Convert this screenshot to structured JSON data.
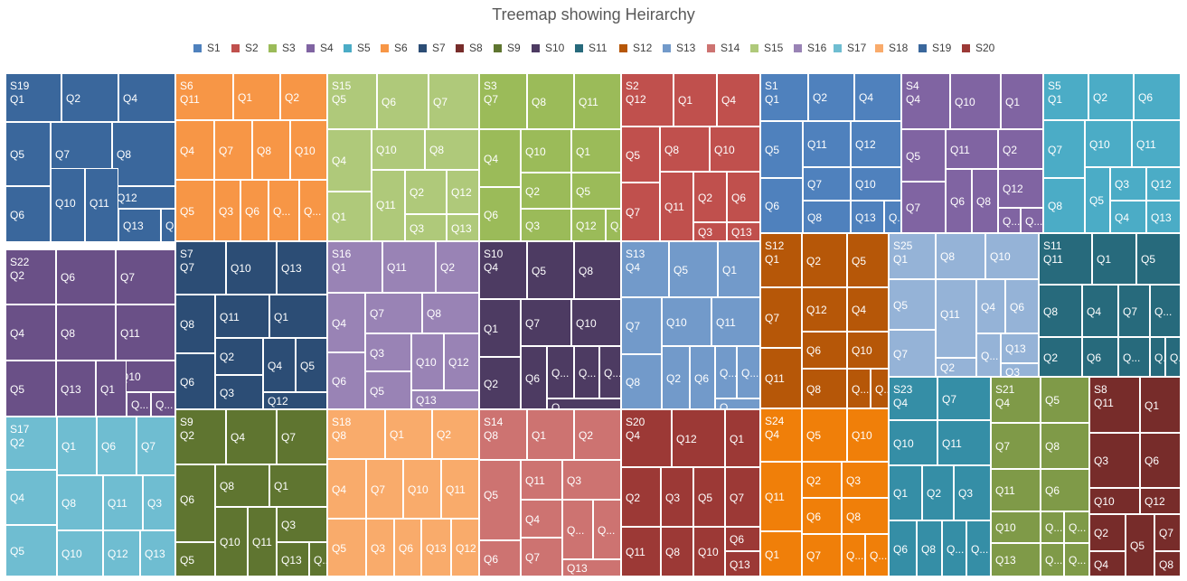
{
  "chart_data": {
    "type": "treemap",
    "title": "Treemap showing Heirarchy",
    "legend_position": "top",
    "legend": [
      "S1",
      "S2",
      "S3",
      "S4",
      "S5",
      "S6",
      "S7",
      "S8",
      "S9",
      "S10",
      "S11",
      "S12",
      "S13",
      "S14",
      "S15",
      "S16",
      "S17",
      "S18",
      "S19",
      "S20"
    ],
    "colors": {
      "S1": "#4f81bd",
      "S2": "#c0504d",
      "S3": "#9bbb59",
      "S4": "#8064a2",
      "S5": "#4bacc6",
      "S6": "#f79646",
      "S7": "#2c4d75",
      "S8": "#772c2a",
      "S9": "#5f7530",
      "S10": "#4d3b62",
      "S11": "#276a7c",
      "S12": "#b65708",
      "S13": "#729aca",
      "S14": "#cd7371",
      "S15": "#afc97a",
      "S16": "#9983b5",
      "S17": "#6fbdd1",
      "S18": "#f9ab6b",
      "S19": "#3a679c",
      "S20": "#9c3936",
      "S21": "#7f9a48",
      "S22": "#6a5087",
      "S23": "#358ea6",
      "S24": "#f07f09",
      "S25": "#95b3d7"
    },
    "groups": [
      {
        "name": "S19",
        "items": [
          "Q1",
          "Q2",
          "Q4",
          "Q5",
          "Q7",
          "Q8",
          "Q12",
          "Q6",
          "Q10",
          "Q11",
          "Q13",
          "Q..."
        ]
      },
      {
        "name": "S22",
        "items": [
          "Q2",
          "Q6",
          "Q7",
          "Q4",
          "Q8",
          "Q11",
          "Q10",
          "Q5",
          "Q13",
          "Q1",
          "Q...",
          "Q..."
        ]
      },
      {
        "name": "S17",
        "items": [
          "Q2",
          "Q1",
          "Q6",
          "Q7",
          "Q4",
          "Q8",
          "Q11",
          "Q3",
          "Q5",
          "Q10",
          "Q12",
          "Q13"
        ]
      },
      {
        "name": "S6",
        "items": [
          "Q11",
          "Q1",
          "Q2",
          "Q4",
          "Q7",
          "Q8",
          "Q10",
          "Q5",
          "Q3",
          "Q6",
          "Q...",
          "Q..."
        ]
      },
      {
        "name": "S7",
        "items": [
          "Q7",
          "Q10",
          "Q13",
          "Q8",
          "Q11",
          "Q1",
          "Q2",
          "Q6",
          "Q3",
          "Q4",
          "Q5",
          "Q12"
        ]
      },
      {
        "name": "S9",
        "items": [
          "Q2",
          "Q4",
          "Q7",
          "Q6",
          "Q8",
          "Q1",
          "Q3",
          "Q5",
          "Q10",
          "Q11",
          "Q13",
          "Q..."
        ]
      },
      {
        "name": "S15",
        "items": [
          "Q5",
          "Q6",
          "Q7",
          "Q4",
          "Q10",
          "Q8",
          "Q2",
          "Q12",
          "Q1",
          "Q11",
          "Q3",
          "Q13"
        ]
      },
      {
        "name": "S16",
        "items": [
          "Q1",
          "Q11",
          "Q2",
          "Q7",
          "Q8",
          "Q4",
          "Q3",
          "Q10",
          "Q12",
          "Q6",
          "Q5",
          "Q13"
        ]
      },
      {
        "name": "S18",
        "items": [
          "Q8",
          "Q1",
          "Q2",
          "Q4",
          "Q7",
          "Q10",
          "Q11",
          "Q5",
          "Q3",
          "Q6",
          "Q13",
          "Q12"
        ]
      },
      {
        "name": "S3",
        "items": [
          "Q7",
          "Q8",
          "Q11",
          "Q4",
          "Q10",
          "Q1",
          "Q2",
          "Q5",
          "Q6",
          "Q3",
          "Q12",
          "Q..."
        ]
      },
      {
        "name": "S10",
        "items": [
          "Q4",
          "Q5",
          "Q8",
          "Q7",
          "Q10",
          "Q1",
          "Q2",
          "Q6",
          "Q...",
          "Q...",
          "Q...",
          "Q..."
        ]
      },
      {
        "name": "S14",
        "items": [
          "Q8",
          "Q1",
          "Q2",
          "Q11",
          "Q3",
          "Q5",
          "Q4",
          "Q6",
          "Q7",
          "Q...",
          "Q13",
          "Q..."
        ]
      },
      {
        "name": "S2",
        "items": [
          "Q12",
          "Q1",
          "Q4",
          "Q5",
          "Q8",
          "Q10",
          "Q2",
          "Q6",
          "Q7",
          "Q11",
          "Q3",
          "Q13"
        ]
      },
      {
        "name": "S13",
        "items": [
          "Q4",
          "Q5",
          "Q1",
          "Q7",
          "Q10",
          "Q11",
          "Q8",
          "Q2",
          "Q6",
          "Q...",
          "Q...",
          "Q..."
        ]
      },
      {
        "name": "S20",
        "items": [
          "Q4",
          "Q12",
          "Q1",
          "Q2",
          "Q3",
          "Q5",
          "Q7",
          "Q6",
          "Q11",
          "Q8",
          "Q10",
          "Q13"
        ]
      },
      {
        "name": "S1",
        "items": [
          "Q1",
          "Q2",
          "Q4",
          "Q5",
          "Q11",
          "Q12",
          "Q7",
          "Q10",
          "Q6",
          "Q8",
          "Q13",
          "Q..."
        ]
      },
      {
        "name": "S12",
        "items": [
          "Q1",
          "Q2",
          "Q5",
          "Q12",
          "Q4",
          "Q7",
          "Q6",
          "Q10",
          "Q11",
          "Q8",
          "Q...",
          "Q..."
        ]
      },
      {
        "name": "S24",
        "items": [
          "Q4",
          "Q5",
          "Q10",
          "Q2",
          "Q3",
          "Q11",
          "Q6",
          "Q8",
          "Q1",
          "Q7",
          "Q...",
          "Q..."
        ]
      },
      {
        "name": "S4",
        "items": [
          "Q4",
          "Q10",
          "Q1",
          "Q5",
          "Q11",
          "Q2",
          "Q12",
          "Q7",
          "Q6",
          "Q8",
          "Q...",
          "Q..."
        ]
      },
      {
        "name": "S25",
        "items": [
          "Q1",
          "Q8",
          "Q10",
          "Q5",
          "Q11",
          "Q4",
          "Q6",
          "Q13",
          "Q7",
          "Q2",
          "Q...",
          "Q3"
        ]
      },
      {
        "name": "S23",
        "items": [
          "Q4",
          "Q7",
          "Q10",
          "Q11",
          "Q1",
          "Q2",
          "Q3",
          "Q6",
          "Q8",
          "Q...",
          "Q...",
          "Q..."
        ]
      },
      {
        "name": "S5",
        "items": [
          "Q1",
          "Q2",
          "Q6",
          "Q7",
          "Q10",
          "Q11",
          "Q3",
          "Q12",
          "Q8",
          "Q5",
          "Q4",
          "Q13"
        ]
      },
      {
        "name": "S11",
        "items": [
          "Q11",
          "Q1",
          "Q5",
          "Q8",
          "Q4",
          "Q7",
          "Q...",
          "Q2",
          "Q6",
          "Q...",
          "Q...",
          "Q..."
        ]
      },
      {
        "name": "S21",
        "items": [
          "Q4",
          "Q5",
          "Q7",
          "Q8",
          "Q11",
          "Q6",
          "Q10",
          "Q13",
          "Q...",
          "Q...",
          "Q...",
          "Q..."
        ]
      },
      {
        "name": "S8",
        "items": [
          "Q11",
          "Q1",
          "Q3",
          "Q6",
          "Q10",
          "Q12",
          "Q2",
          "Q5",
          "Q7",
          "Q4",
          "Q...",
          "Q8"
        ]
      }
    ]
  }
}
